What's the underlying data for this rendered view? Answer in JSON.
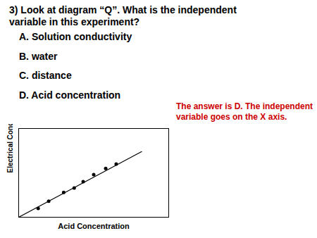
{
  "chart_data": {
    "type": "scatter",
    "title": "3) Look at diagram “Q”. What is the independent\nvariable in this experiment?",
    "annotations": [
      {
        "text": "A. Solution conductivity"
      },
      {
        "text": "B. water"
      },
      {
        "text": "C. distance"
      },
      {
        "text": "D. Acid concentration"
      },
      {
        "text": "The answer is D. The independent\nvariable goes on the X axis.",
        "color": "#cc0000"
      }
    ],
    "x_label": "Acid Concentration",
    "y_label": "Electrical Conductivity",
    "series": [
      {
        "type": "scatter",
        "marker": "circle",
        "color": "#000000",
        "x": [
          0.13,
          0.2,
          0.3,
          0.37,
          0.43,
          0.5,
          0.58,
          0.65
        ],
        "values": [
          0.1,
          0.18,
          0.28,
          0.33,
          0.4,
          0.48,
          0.55,
          0.6
        ]
      },
      {
        "type": "line",
        "line_style": "solid",
        "color": "#000000",
        "x": [
          0.0,
          0.82
        ],
        "values": [
          0.0,
          0.74
        ]
      }
    ],
    "xlim": [
      0,
      1
    ],
    "ylim": [
      0,
      1
    ],
    "xticks": [],
    "yticks": [],
    "tick_labels": false,
    "grid": false
  }
}
